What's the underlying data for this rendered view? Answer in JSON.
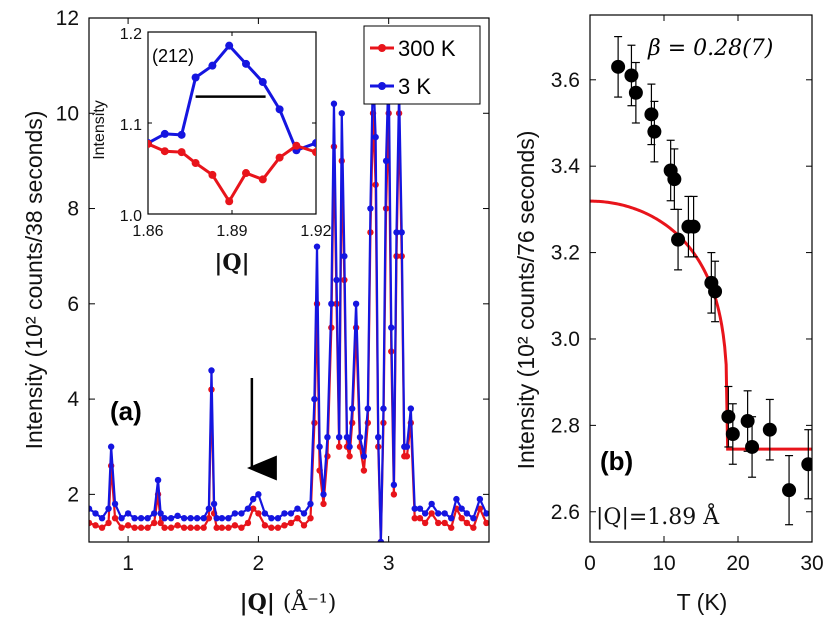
{
  "chart_data": [
    {
      "id": "panel-a",
      "type": "line",
      "panel_label": "(a)",
      "ylabel": "Intensity (10² counts/38 seconds)",
      "xlabel_main": "|Q|",
      "xlabel_units": "(Å⁻¹)",
      "xlim": [
        0.7,
        3.77
      ],
      "ylim": [
        1.0,
        12.0
      ],
      "xticks": [
        1,
        2,
        3
      ],
      "yticks": [
        2,
        4,
        6,
        8,
        10,
        12
      ],
      "legend": [
        {
          "name": "300 K",
          "color": "#e8141b"
        },
        {
          "name": "3 K",
          "color": "#1515e0"
        }
      ],
      "arrow_x": 1.95,
      "series": [
        {
          "name": "300 K",
          "color": "#e8141b",
          "x": [
            0.7,
            0.75,
            0.8,
            0.85,
            0.87,
            0.9,
            0.95,
            1.0,
            1.05,
            1.1,
            1.15,
            1.2,
            1.23,
            1.25,
            1.28,
            1.33,
            1.38,
            1.43,
            1.48,
            1.53,
            1.58,
            1.62,
            1.64,
            1.66,
            1.68,
            1.72,
            1.77,
            1.82,
            1.87,
            1.92,
            1.96,
            2.0,
            2.05,
            2.1,
            2.15,
            2.2,
            2.25,
            2.3,
            2.35,
            2.4,
            2.43,
            2.45,
            2.47,
            2.5,
            2.53,
            2.56,
            2.58,
            2.6,
            2.62,
            2.64,
            2.66,
            2.68,
            2.7,
            2.72,
            2.75,
            2.78,
            2.81,
            2.84,
            2.86,
            2.88,
            2.9,
            2.92,
            2.94,
            2.96,
            2.98,
            3.0,
            3.02,
            3.04,
            3.06,
            3.08,
            3.1,
            3.12,
            3.14,
            3.17,
            3.2,
            3.24,
            3.28,
            3.33,
            3.38,
            3.43,
            3.48,
            3.52,
            3.56,
            3.6,
            3.65,
            3.7,
            3.75
          ],
          "y": [
            1.4,
            1.35,
            1.3,
            1.4,
            2.6,
            1.5,
            1.3,
            1.35,
            1.3,
            1.3,
            1.3,
            1.4,
            2.0,
            1.4,
            1.3,
            1.3,
            1.35,
            1.3,
            1.3,
            1.3,
            1.3,
            1.5,
            4.2,
            1.6,
            1.3,
            1.3,
            1.3,
            1.35,
            1.3,
            1.4,
            1.7,
            1.6,
            1.35,
            1.3,
            1.3,
            1.35,
            1.4,
            1.5,
            1.35,
            1.5,
            3.5,
            6.0,
            2.5,
            1.8,
            2.8,
            5.5,
            9.3,
            6.0,
            3.0,
            9.0,
            6.5,
            3.0,
            2.8,
            3.5,
            5.5,
            3.0,
            2.5,
            3.5,
            7.5,
            10.0,
            8.5,
            3.0,
            1.0,
            3.5,
            8.0,
            10.0,
            5.0,
            2.0,
            7.0,
            10.0,
            7.0,
            2.8,
            2.8,
            3.5,
            1.5,
            1.5,
            1.4,
            1.6,
            1.4,
            1.4,
            1.3,
            1.7,
            1.5,
            1.4,
            1.3,
            1.7,
            1.4
          ]
        },
        {
          "name": "3 K",
          "color": "#1515e0",
          "x": [
            0.7,
            0.75,
            0.8,
            0.85,
            0.87,
            0.9,
            0.95,
            1.0,
            1.05,
            1.1,
            1.15,
            1.2,
            1.23,
            1.25,
            1.28,
            1.33,
            1.38,
            1.43,
            1.48,
            1.53,
            1.58,
            1.62,
            1.64,
            1.66,
            1.68,
            1.72,
            1.77,
            1.82,
            1.87,
            1.92,
            1.96,
            2.0,
            2.05,
            2.1,
            2.15,
            2.2,
            2.25,
            2.3,
            2.35,
            2.4,
            2.43,
            2.45,
            2.47,
            2.5,
            2.53,
            2.56,
            2.58,
            2.6,
            2.62,
            2.64,
            2.66,
            2.68,
            2.7,
            2.72,
            2.75,
            2.78,
            2.81,
            2.84,
            2.86,
            2.88,
            2.9,
            2.92,
            2.94,
            2.96,
            2.98,
            3.0,
            3.02,
            3.04,
            3.06,
            3.08,
            3.1,
            3.12,
            3.14,
            3.17,
            3.2,
            3.24,
            3.28,
            3.33,
            3.38,
            3.43,
            3.48,
            3.52,
            3.56,
            3.6,
            3.65,
            3.7,
            3.75
          ],
          "y": [
            1.7,
            1.6,
            1.5,
            1.7,
            3.0,
            1.8,
            1.5,
            1.6,
            1.5,
            1.5,
            1.5,
            1.6,
            2.3,
            1.6,
            1.5,
            1.5,
            1.55,
            1.5,
            1.5,
            1.5,
            1.5,
            1.7,
            4.6,
            1.8,
            1.5,
            1.5,
            1.5,
            1.6,
            1.6,
            1.7,
            1.9,
            2.0,
            1.6,
            1.5,
            1.5,
            1.6,
            1.6,
            1.7,
            1.6,
            1.8,
            4.0,
            7.2,
            3.0,
            2.0,
            3.2,
            6.0,
            10.2,
            6.5,
            3.2,
            10.0,
            7.0,
            3.2,
            3.0,
            3.8,
            6.0,
            3.2,
            2.8,
            3.8,
            8.0,
            11.0,
            9.5,
            3.2,
            1.0,
            3.8,
            9.0,
            11.0,
            5.5,
            2.2,
            7.5,
            10.5,
            7.5,
            3.0,
            3.0,
            3.8,
            1.7,
            1.7,
            1.6,
            1.8,
            1.6,
            1.6,
            1.5,
            1.9,
            1.7,
            1.6,
            1.5,
            1.9,
            1.6
          ]
        }
      ]
    },
    {
      "id": "inset",
      "type": "line",
      "title": "(212)",
      "ylabel": "Intensity",
      "xlabel": "|Q|",
      "xlim": [
        1.86,
        1.92
      ],
      "ylim": [
        1.0,
        1.2
      ],
      "xticks": [
        1.86,
        1.89,
        1.92
      ],
      "xtick_labels": [
        "1.86",
        "1.89",
        "1.92"
      ],
      "yticks": [
        1.0,
        1.1,
        1.2
      ],
      "ytick_labels": [
        "1.0",
        "1.1",
        "1.2"
      ],
      "bar_range": [
        1.877,
        1.902
      ],
      "bar_y": 1.129,
      "series": [
        {
          "name": "3 K",
          "color": "#1515e0",
          "x": [
            1.86,
            1.866,
            1.872,
            1.877,
            1.883,
            1.889,
            1.895,
            1.901,
            1.907,
            1.913,
            1.92
          ],
          "y": [
            1.078,
            1.088,
            1.087,
            1.15,
            1.163,
            1.185,
            1.165,
            1.145,
            1.115,
            1.07,
            1.078
          ]
        },
        {
          "name": "300 K",
          "color": "#e8141b",
          "x": [
            1.86,
            1.866,
            1.872,
            1.877,
            1.883,
            1.889,
            1.895,
            1.901,
            1.907,
            1.913,
            1.92
          ],
          "y": [
            1.077,
            1.069,
            1.068,
            1.056,
            1.043,
            1.014,
            1.045,
            1.038,
            1.062,
            1.075,
            1.068
          ]
        }
      ]
    },
    {
      "id": "panel-b",
      "type": "scatter",
      "panel_label": "(b)",
      "ylabel": "Intensity (10² counts/76 seconds)",
      "xlabel": "T (K)",
      "xlim": [
        0,
        30
      ],
      "ylim": [
        2.53,
        3.75
      ],
      "xticks": [
        0,
        10,
        20,
        30
      ],
      "yticks": [
        2.6,
        2.8,
        3.0,
        3.2,
        3.4,
        3.6
      ],
      "ytick_labels": [
        "2.6",
        "2.8",
        "3.0",
        "3.2",
        "3.4",
        "3.6"
      ],
      "beta_label": "β = 0.28(7)",
      "q_label": "|Q|=1.89 Å",
      "points": {
        "x": [
          3.8,
          5.6,
          6.2,
          8.3,
          8.7,
          10.9,
          11.4,
          11.9,
          13.3,
          14.0,
          16.4,
          16.9,
          18.7,
          19.3,
          21.3,
          21.9,
          24.3,
          26.9,
          29.5
        ],
        "y": [
          3.63,
          3.61,
          3.57,
          3.52,
          3.48,
          3.39,
          3.37,
          3.23,
          3.26,
          3.26,
          3.13,
          3.11,
          2.82,
          2.78,
          2.81,
          2.75,
          2.79,
          2.65,
          2.71
        ],
        "err": [
          0.07,
          0.07,
          0.07,
          0.07,
          0.07,
          0.07,
          0.07,
          0.07,
          0.07,
          0.07,
          0.07,
          0.07,
          0.07,
          0.07,
          0.07,
          0.07,
          0.07,
          0.08,
          0.08
        ]
      },
      "fit": {
        "color": "#e8141b",
        "Tc": 18.6,
        "beta": 0.28,
        "base": 2.745,
        "amplitude": 0.185
      }
    }
  ]
}
